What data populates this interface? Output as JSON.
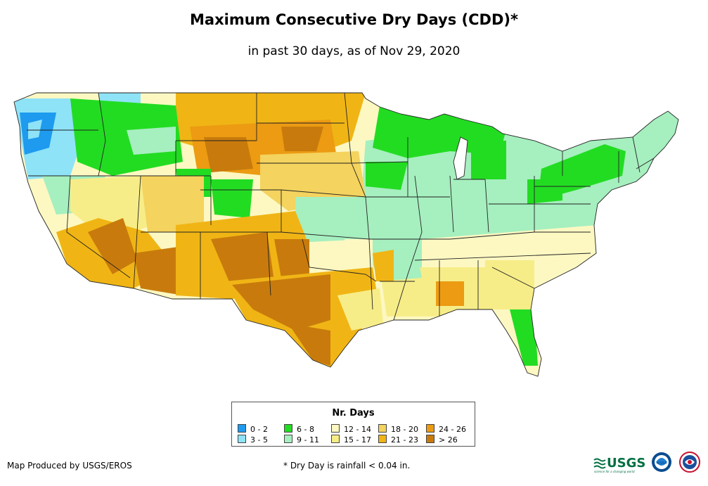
{
  "title": "Maximum Consecutive Dry Days (CDD)*",
  "subtitle": "in past 30 days, as of Nov 29, 2020",
  "legend": {
    "title": "Nr. Days",
    "items": [
      {
        "label": "0 - 2",
        "color": "#1e9bef"
      },
      {
        "label": "3 - 5",
        "color": "#8fe3f7"
      },
      {
        "label": "6 - 8",
        "color": "#22dc22"
      },
      {
        "label": "9 - 11",
        "color": "#a6efbf"
      },
      {
        "label": "12 - 14",
        "color": "#fdf8c2"
      },
      {
        "label": "15 - 17",
        "color": "#f7ed88"
      },
      {
        "label": "18 - 20",
        "color": "#f4d35e"
      },
      {
        "label": "21 - 23",
        "color": "#f0b515"
      },
      {
        "label": "24 - 26",
        "color": "#ec9b12"
      },
      {
        "label": "> 26",
        "color": "#c87b0c"
      }
    ]
  },
  "footer": {
    "credit": "Map Produced by USGS/EROS",
    "footnote": "* Dry Day is rainfall < 0.04 in."
  },
  "logos": {
    "usgs": "USGS",
    "usgs_tagline": "science for a changing world",
    "noaa": "NOAA"
  }
}
